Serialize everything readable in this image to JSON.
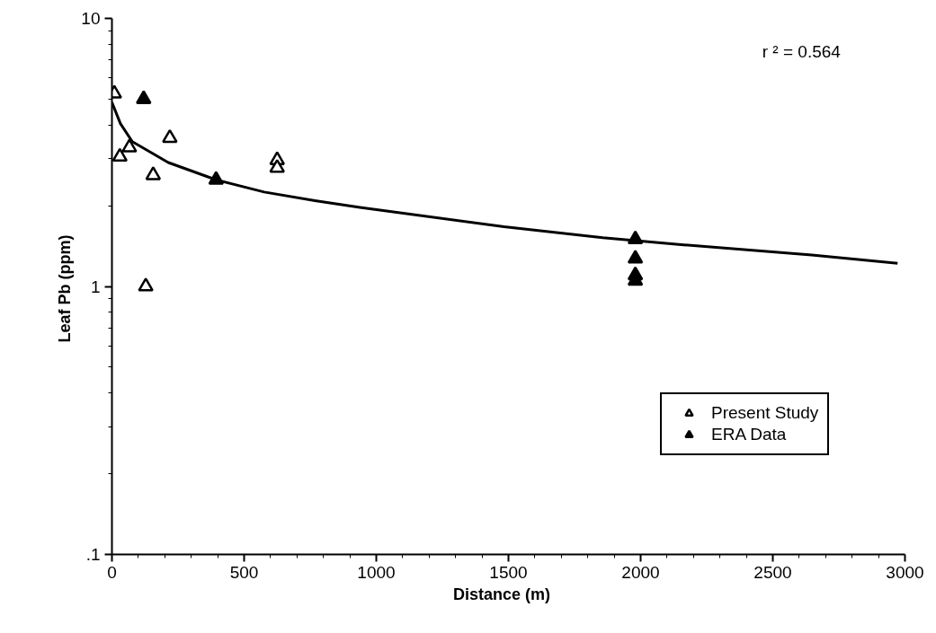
{
  "chart_data": {
    "type": "scatter",
    "xlabel": "Distance    (m)",
    "ylabel": "Leaf Pb  (ppm)",
    "annotations": [
      "r ² = 0.564"
    ],
    "log": "y",
    "xlim": [
      0,
      3000
    ],
    "ylim": [
      0.1,
      10
    ],
    "xticks": [
      0,
      500,
      1000,
      1500,
      2000,
      2500,
      3000
    ],
    "yticks": [
      {
        "value": 0.1,
        "label": ".1"
      },
      1,
      10
    ],
    "grid": false,
    "legend": "bottom right",
    "series": [
      {
        "name": "Present Study",
        "color": "#000000",
        "marker": "triangle",
        "x": [
          9,
          30,
          66,
          128,
          156,
          219,
          625,
          625
        ],
        "values": [
          5.24,
          3.05,
          3.3,
          1.0,
          2.6,
          3.58,
          2.96,
          2.77
        ]
      },
      {
        "name": "ERA Data",
        "color": "#000000",
        "marker": "triangle",
        "x": [
          120,
          394,
          1980,
          1980,
          1980,
          1980
        ],
        "values": [
          5.0,
          2.5,
          1.5,
          1.27,
          1.1,
          1.05
        ]
      },
      {
        "type": "line",
        "color": "#000000",
        "line_style": "solid",
        "x": [
          0,
          32,
          77,
          213,
          394,
          576,
          768,
          938,
          1483,
          1857,
          2163,
          2647,
          2972
        ],
        "values": [
          4.86,
          4.05,
          3.47,
          2.9,
          2.5,
          2.25,
          2.09,
          1.97,
          1.67,
          1.52,
          1.43,
          1.31,
          1.22
        ]
      }
    ]
  }
}
